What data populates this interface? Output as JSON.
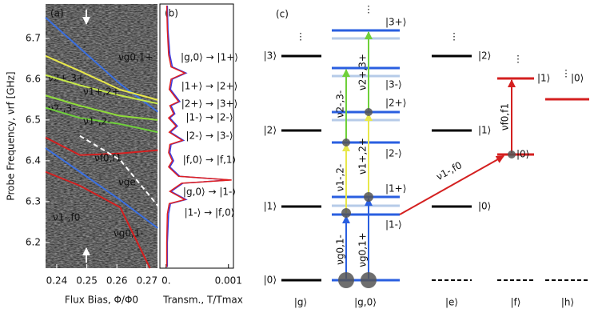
{
  "chart_data": [
    {
      "type": "line",
      "panel_label": "(a)",
      "x_label": "Flux Bias, Φ/Φ0",
      "y_label": "Probe Frequency, νrf [GHz]",
      "xlim": [
        0.2363,
        0.2735
      ],
      "ylim": [
        6.137,
        6.784
      ],
      "xticks": [
        0.24,
        0.25,
        0.26,
        0.27
      ],
      "yticks": [
        6.2,
        6.3,
        6.4,
        6.5,
        6.6,
        6.7
      ],
      "series": [
        {
          "name": "νg0,1+",
          "color": "#3a6fe0",
          "x": [
            0.2363,
            0.2477,
            0.2611,
            0.2736
          ],
          "values": [
            6.751,
            6.676,
            6.588,
            6.52
          ]
        },
        {
          "name": "ν2+,3+",
          "color": "#e8e84a",
          "x": [
            0.2363,
            0.2477,
            0.2611,
            0.2736
          ],
          "values": [
            6.657,
            6.62,
            6.574,
            6.549
          ]
        },
        {
          "name": "ν1+,2+",
          "color": "#c6e84a",
          "x": [
            0.2363,
            0.2477,
            0.2611,
            0.2736
          ],
          "values": [
            6.61,
            6.585,
            6.56,
            6.54
          ]
        },
        {
          "name": "ν2-,3-",
          "color": "#8fdc3a",
          "x": [
            0.2363,
            0.2477,
            0.2611,
            0.2736
          ],
          "values": [
            6.56,
            6.535,
            6.51,
            6.5
          ]
        },
        {
          "name": "ν1-,2-",
          "color": "#6fd03a",
          "x": [
            0.2363,
            0.2477,
            0.2611,
            0.2736
          ],
          "values": [
            6.53,
            6.505,
            6.49,
            6.47
          ]
        },
        {
          "name": "νf0,f1",
          "color": "#d42020",
          "x": [
            0.2363,
            0.2477,
            0.2611,
            0.2736
          ],
          "values": [
            6.457,
            6.414,
            6.418,
            6.426
          ]
        },
        {
          "name": "νge",
          "color": "#ffffff",
          "dash": true,
          "x": [
            0.2477,
            0.2611,
            0.2736
          ],
          "values": [
            6.461,
            6.402,
            6.29
          ]
        },
        {
          "name": "ν1-,f0",
          "color": "#d42020",
          "x": [
            0.2363,
            0.2477,
            0.2611,
            0.271
          ],
          "values": [
            6.373,
            6.339,
            6.286,
            6.137
          ]
        },
        {
          "name": "νg0,1-",
          "color": "#3a6fe0",
          "x": [
            0.2363,
            0.2477,
            0.2611,
            0.2736
          ],
          "values": [
            6.431,
            6.373,
            6.304,
            6.235
          ]
        }
      ]
    },
    {
      "type": "hline",
      "panel_label": "(b)",
      "x_label": "Transm., T/Tmax",
      "xlim": [
        -0.0001,
        0.00108
      ],
      "ylim": [
        6.137,
        6.784
      ],
      "xticks": [
        {
          "value": 0,
          "label": "0."
        },
        0.001
      ],
      "y": [
        6.78,
        6.72,
        6.66,
        6.63,
        6.615,
        6.6,
        6.575,
        6.545,
        6.535,
        6.515,
        6.505,
        6.485,
        6.47,
        6.45,
        6.44,
        6.42,
        6.4,
        6.385,
        6.362,
        6.353,
        6.345,
        6.325,
        6.305,
        6.295,
        6.27,
        6.2,
        6.14
      ],
      "series": [
        {
          "color": "#3a3ae0",
          "values": [
            2e-05,
            3e-05,
            6e-05,
            0.0001,
            0.00032,
            0.0001,
            7e-05,
            0.00022,
            8e-05,
            0.00014,
            6e-05,
            0.00018,
            7e-05,
            0.00028,
            8e-05,
            6e-05,
            0.00012,
            6e-05,
            0.00022,
            0.00102,
            0.00027,
            8e-05,
            0.00032,
            7e-05,
            4e-05,
            2e-05,
            2e-05
          ]
        },
        {
          "color": "#e02020",
          "values": [
            1e-05,
            2e-05,
            4e-05,
            8e-05,
            0.0003,
            8e-05,
            5e-05,
            0.0002,
            6e-05,
            0.00012,
            4e-05,
            0.00016,
            5e-05,
            0.00026,
            6e-05,
            4e-05,
            0.0001,
            4e-05,
            0.0002,
            0.00105,
            0.00025,
            6e-05,
            0.0003,
            5e-05,
            2e-05,
            1e-05,
            1e-05
          ]
        }
      ],
      "annotations": [
        "|g,0⟩ → |1+⟩",
        "|1+⟩ → |2+⟩",
        "|2+⟩ → |3+⟩",
        "|1-⟩ → |2-⟩",
        "|2-⟩ → |3-⟩",
        "|f,0⟩ → |f,1⟩",
        "|g,0⟩ → |1-⟩",
        "|1-⟩ → |f,0⟩"
      ]
    }
  ],
  "diagram": {
    "label": "(c)",
    "columns": [
      "|g⟩",
      "|g,0⟩",
      "|e⟩",
      "|f⟩",
      "|h⟩"
    ],
    "g_levels": [
      "|0⟩",
      "|1⟩",
      "|2⟩",
      "|3⟩"
    ],
    "g0_levels": [
      "|1-⟩",
      "|1+⟩",
      "|2-⟩",
      "|2+⟩",
      "|3-⟩",
      "|3+⟩"
    ],
    "e_levels": [
      "|0⟩",
      "|1⟩",
      "|2⟩"
    ],
    "f_levels": [
      "|0⟩",
      "|1⟩"
    ],
    "h_levels": [
      "|0⟩"
    ],
    "transitions": [
      "νg0,1-",
      "νg0,1+",
      "ν1-,2-",
      "ν1+,2+",
      "ν2-,3-",
      "ν2+,3+",
      "ν1-,f0",
      "νf0,f1"
    ]
  }
}
